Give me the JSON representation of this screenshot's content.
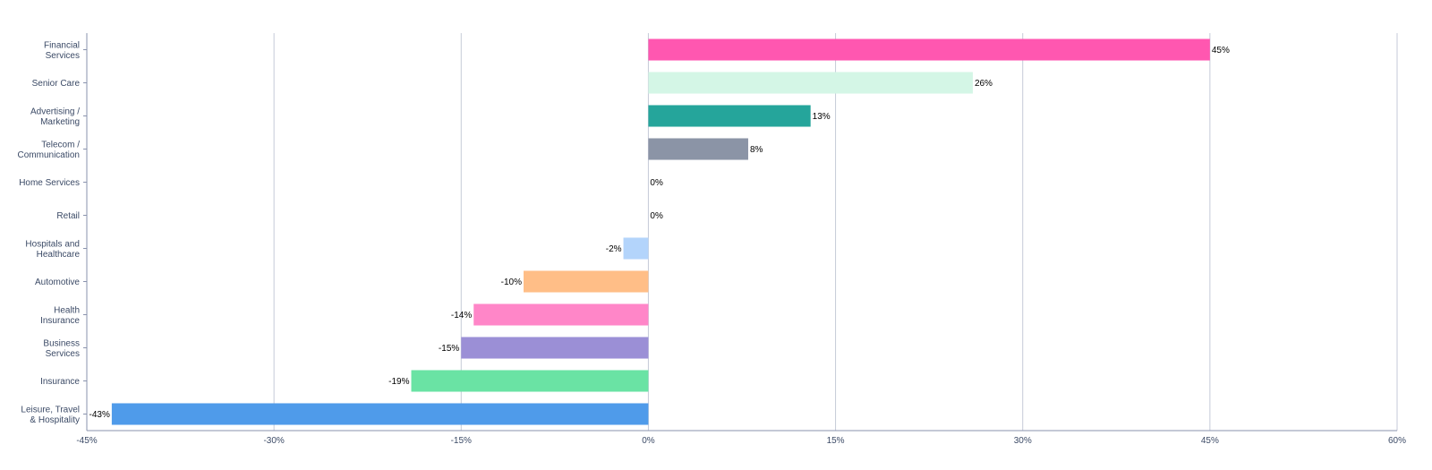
{
  "chart_data": {
    "type": "bar",
    "orientation": "horizontal",
    "categories": [
      [
        "Financial",
        "Services"
      ],
      [
        "Senior Care"
      ],
      [
        "Advertising /",
        "Marketing"
      ],
      [
        "Telecom /",
        "Communication"
      ],
      [
        "Home Services"
      ],
      [
        "Retail"
      ],
      [
        "Hospitals and",
        "Healthcare"
      ],
      [
        "Automotive"
      ],
      [
        "Health",
        "Insurance"
      ],
      [
        "Business",
        "Services"
      ],
      [
        "Insurance"
      ],
      [
        "Leisure, Travel",
        "& Hospitality"
      ]
    ],
    "values": [
      45,
      26,
      13,
      8,
      0,
      0,
      -2,
      -10,
      -14,
      -15,
      -19,
      -43
    ],
    "data_labels": [
      "45%",
      "26%",
      "13%",
      "8%",
      "0%",
      "0%",
      "-2%",
      "-10%",
      "-14%",
      "-15%",
      "-19%",
      "-43%"
    ],
    "colors": [
      "#ff57b0",
      "#d4f6e6",
      "#25a59b",
      "#8b94a6",
      "#cccccc",
      "#cccccc",
      "#b3d4fb",
      "#ffbe87",
      "#ff86c8",
      "#9b8fd6",
      "#6ae3a4",
      "#4f9bea"
    ],
    "x_ticks": [
      -45,
      -30,
      -15,
      0,
      15,
      30,
      45,
      60
    ],
    "x_tick_labels": [
      "-45%",
      "-30%",
      "-15%",
      "0%",
      "15%",
      "30%",
      "45%",
      "60%"
    ],
    "xlim": [
      -45,
      60
    ],
    "title": "",
    "xlabel": "",
    "ylabel": "",
    "grid": "vertical",
    "legend": "none"
  }
}
